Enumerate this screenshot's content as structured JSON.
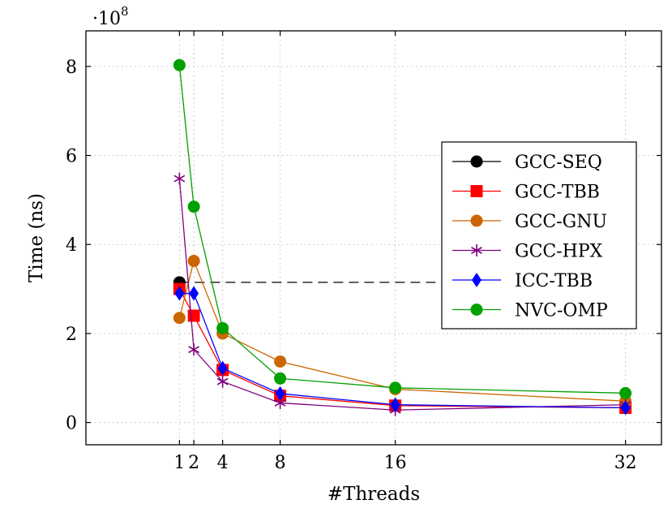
{
  "chart_data": {
    "type": "line",
    "xlabel": "#Threads",
    "ylabel": "Time (ns)",
    "y_scale_label": "·10",
    "y_scale_exponent": "8",
    "y_multiplier": 100000000,
    "xlim": [
      -5.5,
      34.5
    ],
    "ylim": [
      -0.5,
      8.8
    ],
    "x_ticks": [
      1,
      2,
      4,
      8,
      16,
      32
    ],
    "y_ticks": [
      0,
      2,
      4,
      6,
      8
    ],
    "grid": true,
    "legend_position": "right",
    "series": [
      {
        "name": "GCC-SEQ",
        "color": "#000000",
        "marker": "circle",
        "x": [
          1
        ],
        "y": [
          3.15
        ]
      },
      {
        "name": "GCC-TBB",
        "color": "#ff0000",
        "marker": "square",
        "x": [
          1,
          2,
          4,
          8,
          16,
          32
        ],
        "y": [
          3.0,
          2.4,
          1.18,
          0.6,
          0.38,
          0.33
        ]
      },
      {
        "name": "GCC-GNU",
        "color": "#cc6600",
        "marker": "circle",
        "x": [
          1,
          2,
          4,
          8,
          16,
          32
        ],
        "y": [
          2.35,
          3.63,
          2.0,
          1.37,
          0.75,
          0.48
        ]
      },
      {
        "name": "GCC-HPX",
        "color": "#800080",
        "marker": "star",
        "x": [
          1,
          2,
          4,
          8,
          16,
          32
        ],
        "y": [
          5.48,
          1.64,
          0.92,
          0.44,
          0.28,
          0.4
        ]
      },
      {
        "name": "ICC-TBB",
        "color": "#0000ff",
        "marker": "diamond",
        "x": [
          1,
          2,
          4,
          8,
          16,
          32
        ],
        "y": [
          2.9,
          2.9,
          1.22,
          0.65,
          0.4,
          0.33
        ]
      },
      {
        "name": "NVC-OMP",
        "color": "#00a000",
        "marker": "circle",
        "x": [
          1,
          2,
          4,
          8,
          16,
          32
        ],
        "y": [
          8.03,
          4.85,
          2.12,
          0.99,
          0.78,
          0.66
        ]
      }
    ],
    "reference_line": {
      "y": 3.15,
      "x_from": 1,
      "x_to": 32,
      "style": "dashed",
      "color": "#000000"
    }
  }
}
